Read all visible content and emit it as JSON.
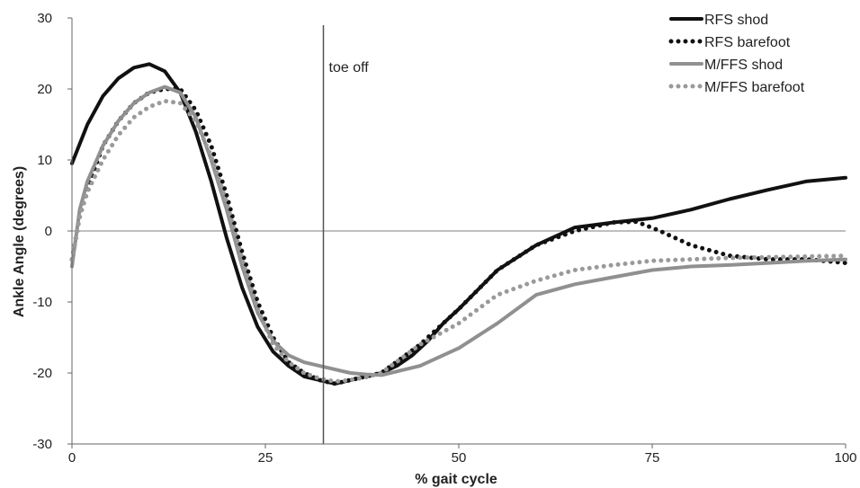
{
  "chart_data": {
    "type": "line",
    "title": "",
    "xlabel": "% gait cycle",
    "ylabel": "Ankle Angle (degrees)",
    "xlim": [
      0,
      100
    ],
    "ylim": [
      -30,
      30
    ],
    "xticks": [
      0,
      25,
      50,
      75,
      100
    ],
    "yticks": [
      -30,
      -20,
      -10,
      0,
      10,
      20,
      30
    ],
    "zero_line": true,
    "legend_position": "top-right",
    "annotation": {
      "text": "toe off",
      "x": 32.5
    },
    "series": [
      {
        "name": "RFS shod",
        "color": "#111111",
        "style": "solid",
        "x": [
          0,
          2,
          4,
          6,
          8,
          10,
          12,
          14,
          16,
          18,
          20,
          22,
          24,
          26,
          28,
          30,
          32,
          34,
          36,
          38,
          40,
          42,
          44,
          46,
          48,
          50,
          55,
          60,
          65,
          70,
          75,
          80,
          85,
          90,
          95,
          100
        ],
        "y": [
          9.5,
          15,
          19,
          21.5,
          23,
          23.5,
          22.5,
          19.5,
          14,
          7,
          -1,
          -8,
          -13.5,
          -17,
          -19,
          -20.5,
          -21,
          -21.5,
          -21,
          -20.5,
          -20,
          -19,
          -17.5,
          -15.5,
          -13,
          -11,
          -5.5,
          -2,
          0.5,
          1.2,
          1.8,
          3,
          4.5,
          5.8,
          7,
          7.5
        ]
      },
      {
        "name": "RFS barefoot",
        "color": "#111111",
        "style": "dotted",
        "x": [
          0,
          1,
          2,
          4,
          6,
          8,
          10,
          12,
          14,
          16,
          18,
          20,
          22,
          24,
          26,
          28,
          30,
          32,
          34,
          36,
          38,
          40,
          45,
          50,
          55,
          60,
          65,
          70,
          73,
          76,
          80,
          85,
          90,
          95,
          100
        ],
        "y": [
          -4,
          2,
          6,
          12,
          15.5,
          18,
          19.5,
          20,
          20,
          17,
          12,
          5,
          -3,
          -10,
          -15,
          -18.5,
          -20,
          -21,
          -21.5,
          -21,
          -20.5,
          -20,
          -16,
          -11,
          -5.5,
          -2,
          0,
          1.2,
          1.3,
          0,
          -2,
          -3.5,
          -4,
          -4,
          -4.5
        ]
      },
      {
        "name": "M/FFS shod",
        "color": "#909090",
        "style": "solid",
        "x": [
          0,
          1,
          2,
          4,
          6,
          8,
          10,
          12,
          14,
          16,
          18,
          20,
          22,
          24,
          26,
          28,
          30,
          32,
          34,
          36,
          38,
          40,
          45,
          50,
          55,
          60,
          65,
          70,
          75,
          80,
          85,
          90,
          95,
          100
        ],
        "y": [
          -5,
          3,
          7,
          12,
          15.5,
          18,
          19.5,
          20.3,
          19.5,
          16,
          10,
          3,
          -5,
          -11.5,
          -15.5,
          -17.5,
          -18.5,
          -19,
          -19.5,
          -20,
          -20.2,
          -20.3,
          -19,
          -16.5,
          -13,
          -9,
          -7.5,
          -6.5,
          -5.5,
          -5,
          -4.8,
          -4.5,
          -4.2,
          -4
        ]
      },
      {
        "name": "M/FFS barefoot",
        "color": "#9a9a9a",
        "style": "dotted",
        "x": [
          0,
          1,
          2,
          4,
          6,
          8,
          10,
          12,
          14,
          16,
          18,
          20,
          22,
          24,
          26,
          28,
          30,
          32,
          34,
          36,
          38,
          40,
          45,
          50,
          55,
          60,
          65,
          70,
          75,
          80,
          85,
          90,
          95,
          100
        ],
        "y": [
          -4,
          2,
          5.5,
          10,
          13.5,
          16,
          17.5,
          18.3,
          18,
          15.5,
          10.5,
          4,
          -4,
          -11,
          -16,
          -18.5,
          -20,
          -20.8,
          -21.2,
          -21,
          -20.6,
          -20,
          -16,
          -13,
          -9,
          -7,
          -5.5,
          -4.8,
          -4.2,
          -4,
          -3.8,
          -3.7,
          -3.6,
          -3.5
        ]
      }
    ]
  }
}
